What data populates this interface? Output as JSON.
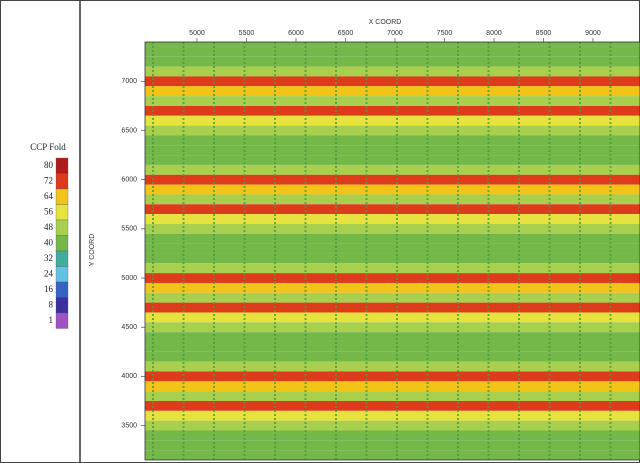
{
  "chart_data": {
    "type": "heatmap",
    "legend_title": "CCP Fold",
    "legend_levels": [
      80,
      72,
      64,
      56,
      48,
      40,
      32,
      24,
      16,
      8,
      1
    ],
    "legend_colors": [
      "#b01c1c",
      "#dd3b1c",
      "#f2c418",
      "#e6e23e",
      "#a8cf4e",
      "#74b84a",
      "#3fae9c",
      "#62c2e2",
      "#3563c4",
      "#3d2f9e",
      "#a052c4"
    ],
    "xlabel": "X COORD",
    "ylabel": "Y COORD",
    "xlim": [
      4475,
      9475
    ],
    "ylim": [
      3150,
      7400
    ],
    "xticks": [
      5000,
      5500,
      6000,
      6500,
      7000,
      7500,
      8000,
      8500,
      9000
    ],
    "yticks": [
      3500,
      4000,
      4500,
      5000,
      5500,
      6000,
      6500,
      7000
    ],
    "y": [
      7400,
      7300,
      7200,
      7100,
      7000,
      6900,
      6800,
      6700,
      6600,
      6500,
      6400,
      6300,
      6200,
      6100,
      6000,
      5900,
      5800,
      5700,
      5600,
      5500,
      5400,
      5300,
      5200,
      5100,
      5000,
      4900,
      4800,
      4700,
      4600,
      4500,
      4400,
      4300,
      4200,
      4100,
      4000,
      3900,
      3800,
      3700,
      3600,
      3500,
      3400,
      3300,
      3200
    ],
    "values": [
      44,
      44,
      44,
      48,
      72,
      64,
      52,
      72,
      60,
      48,
      44,
      44,
      44,
      48,
      72,
      64,
      52,
      72,
      60,
      48,
      44,
      44,
      44,
      48,
      72,
      64,
      52,
      72,
      60,
      48,
      44,
      44,
      44,
      48,
      72,
      64,
      52,
      72,
      60,
      48,
      44,
      44,
      44
    ]
  }
}
